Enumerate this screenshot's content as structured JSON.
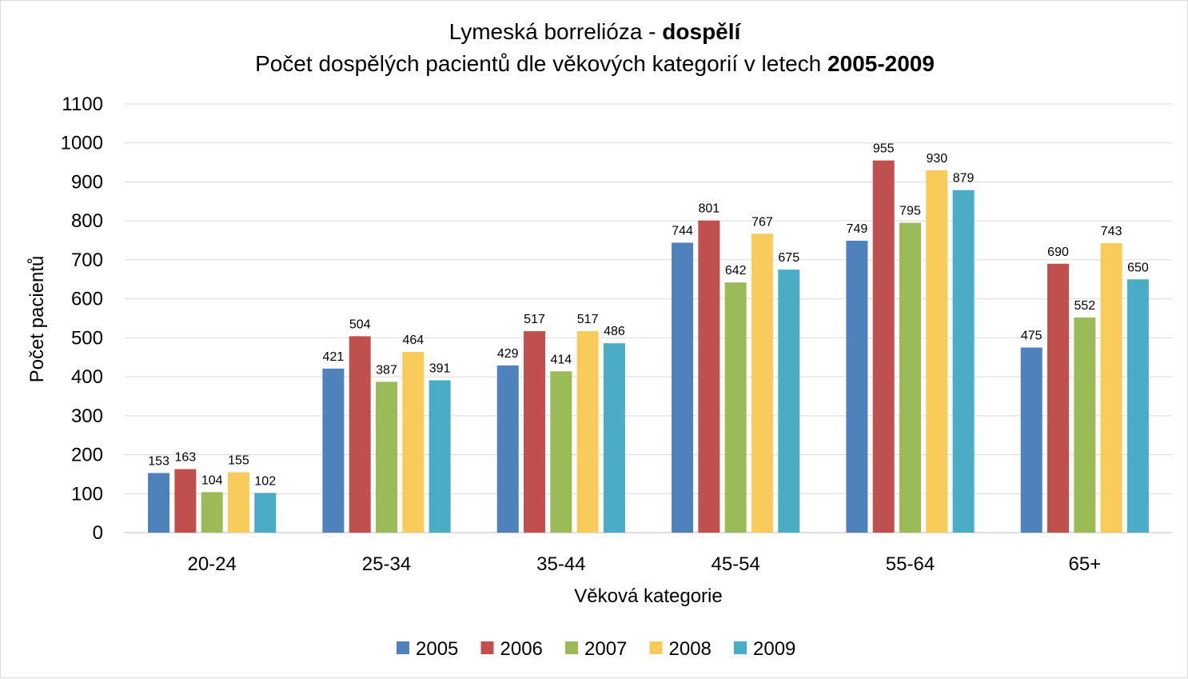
{
  "chart_data": {
    "type": "bar",
    "title_line1_normal": "Lymeská borrelióza - ",
    "title_line1_bold": "dospělí",
    "title_line2_normal": "Počet dospělých pacientů dle věkových kategorií v letech ",
    "title_line2_bold": "2005-2009",
    "xlabel": "Věková kategorie",
    "ylabel": "Počet pacientů",
    "ylim": [
      0,
      1100
    ],
    "yticks": [
      0,
      100,
      200,
      300,
      400,
      500,
      600,
      700,
      800,
      900,
      1000,
      1100
    ],
    "grid": true,
    "legend_position": "bottom",
    "categories": [
      "20-24",
      "25-34",
      "35-44",
      "45-54",
      "55-64",
      "65+"
    ],
    "series": [
      {
        "name": "2005",
        "color": "#4f81bd",
        "values": [
          153,
          421,
          429,
          744,
          749,
          475
        ]
      },
      {
        "name": "2006",
        "color": "#c0504d",
        "values": [
          163,
          504,
          517,
          801,
          955,
          690
        ]
      },
      {
        "name": "2007",
        "color": "#9bbb59",
        "values": [
          104,
          387,
          414,
          642,
          795,
          552
        ]
      },
      {
        "name": "2008",
        "color": "#f9cb5b",
        "values": [
          155,
          464,
          517,
          767,
          930,
          743
        ]
      },
      {
        "name": "2009",
        "color": "#4bacc6",
        "values": [
          102,
          391,
          486,
          675,
          879,
          650
        ]
      }
    ]
  }
}
